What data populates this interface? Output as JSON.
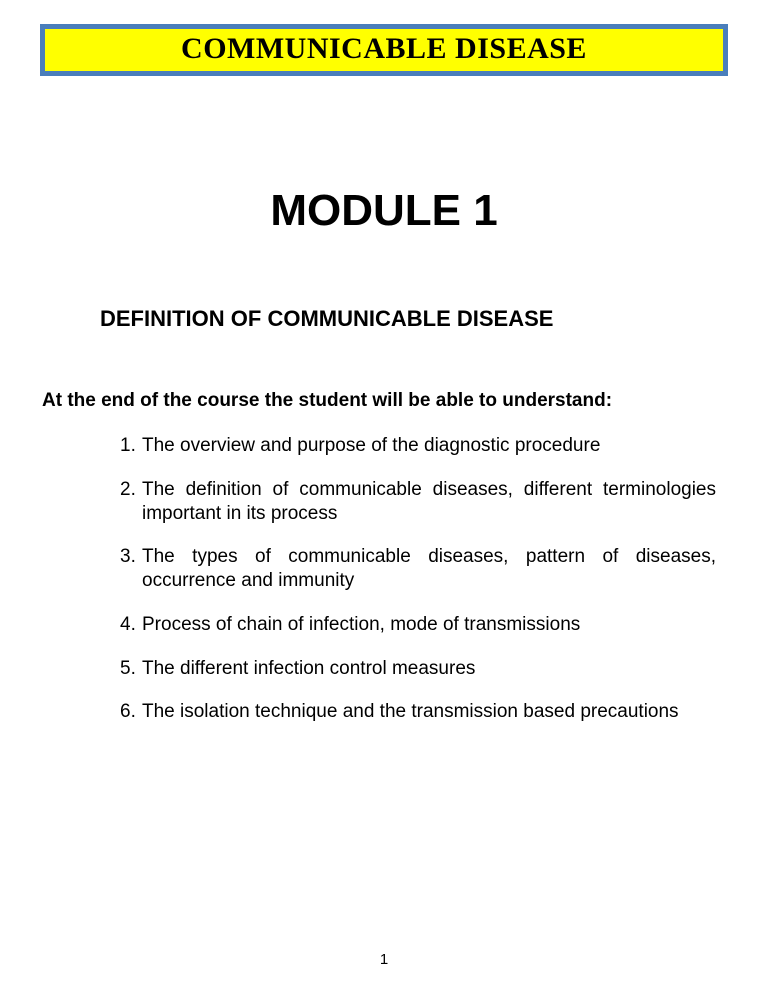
{
  "banner": {
    "text": "COMMUNICABLE DISEASE",
    "background_color": "#ffff00",
    "border_color": "#4a7ebb",
    "text_color": "#000000"
  },
  "module_title": "MODULE 1",
  "section_heading": "DEFINITION OF COMMUNICABLE DISEASE",
  "intro": "At the end of the course the student will be able to understand:",
  "objectives": [
    {
      "num": "1.",
      "text": "The overview and purpose of the diagnostic procedure"
    },
    {
      "num": "2.",
      "text": "The definition of communicable diseases, different terminologies important in its process"
    },
    {
      "num": "3.",
      "text": "The types of communicable diseases, pattern of diseases, occurrence and immunity"
    },
    {
      "num": "4.",
      "text": "Process of chain of infection, mode of transmissions"
    },
    {
      "num": "5.",
      "text": "The different infection control measures"
    },
    {
      "num": "6.",
      "text": "The isolation technique and the transmission based precautions"
    }
  ],
  "page_number": "1",
  "colors": {
    "page_bg": "#ffffff",
    "text": "#000000"
  }
}
